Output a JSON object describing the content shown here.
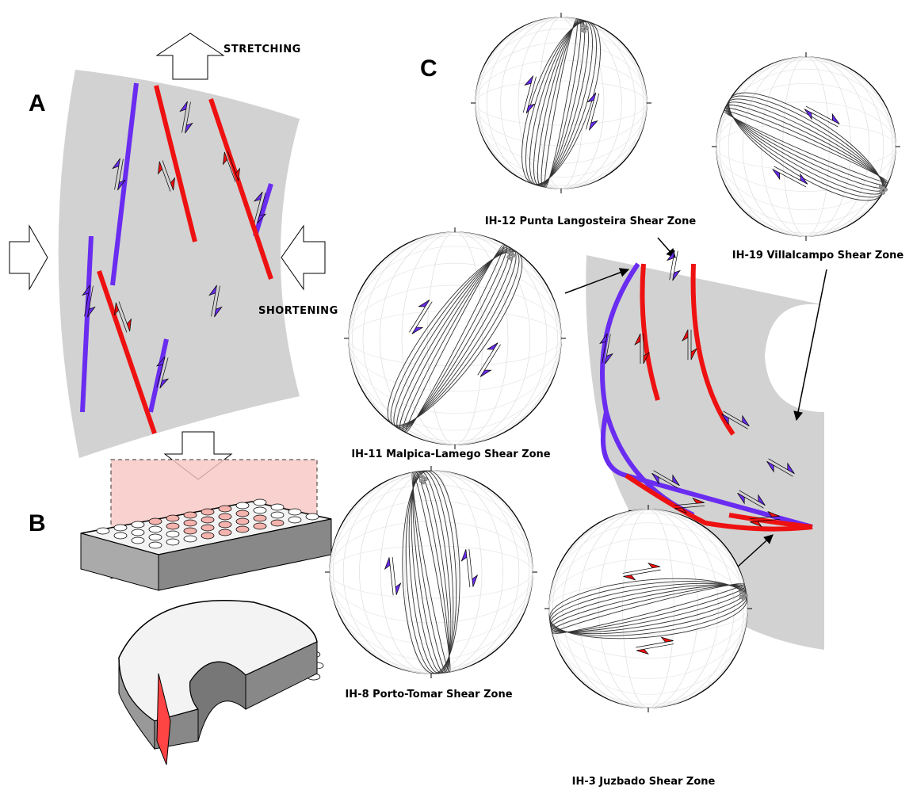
{
  "panel_a": {
    "label": "A",
    "stretching": "STRETCHING",
    "shortening": "SHORTENING"
  },
  "panel_b": {
    "label": "B"
  },
  "panel_c": {
    "label": "C",
    "stereonets": [
      {
        "label": "IH-12 Punta Langosteira Shear Zone"
      },
      {
        "label": "IH-19 Villalcampo Shear Zone"
      },
      {
        "label": "IH-11 Malpica-Lamego Shear Zone"
      },
      {
        "label": "IH-8 Porto-Tomar Shear Zone"
      },
      {
        "label": "IH-3 Juzbado Shear Zone"
      }
    ]
  }
}
